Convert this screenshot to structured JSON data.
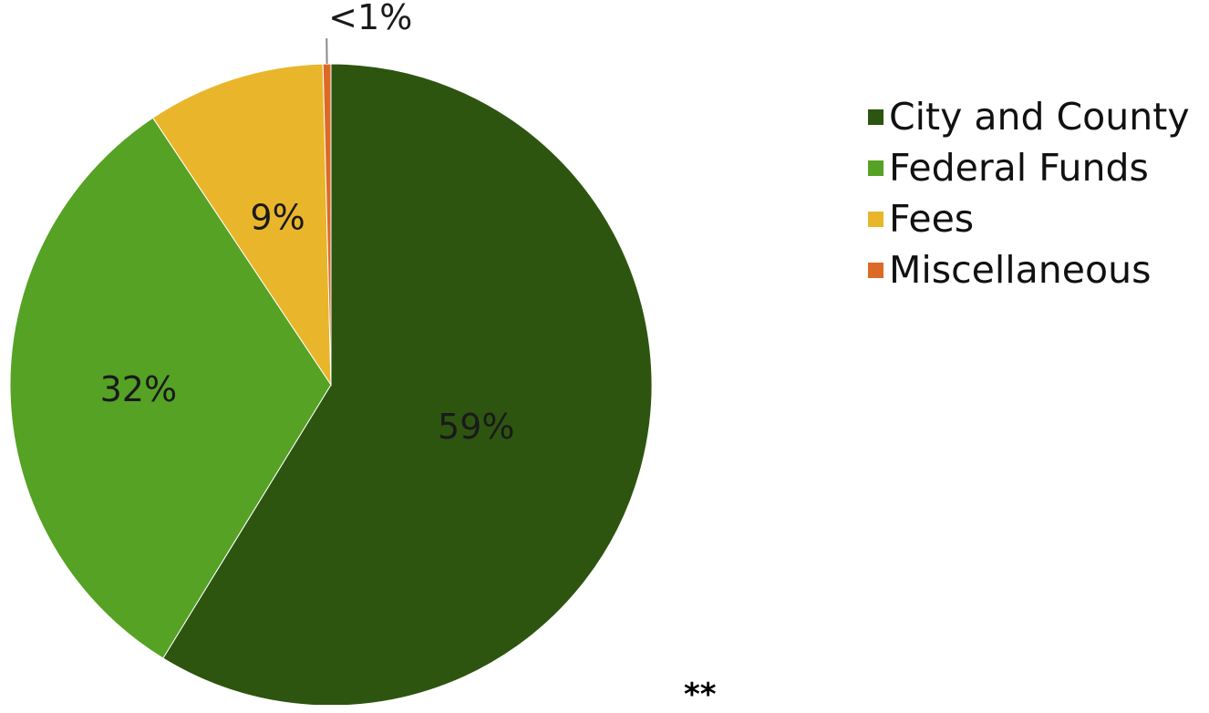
{
  "chart_data": {
    "type": "pie",
    "slices": [
      {
        "label": "City and County",
        "value": 59,
        "display": "59%",
        "color": "#2d5510"
      },
      {
        "label": "Federal Funds",
        "value": 32,
        "display": "32%",
        "color": "#55a224"
      },
      {
        "label": "Fees",
        "value": 9,
        "display": "9%",
        "color": "#e9b62b"
      },
      {
        "label": "Miscellaneous",
        "value": 0.4,
        "display": "<1%",
        "color": "#dc6a27"
      }
    ],
    "start_angle": "top",
    "direction": "clockwise",
    "legend_position": "right"
  },
  "footnote": "**"
}
